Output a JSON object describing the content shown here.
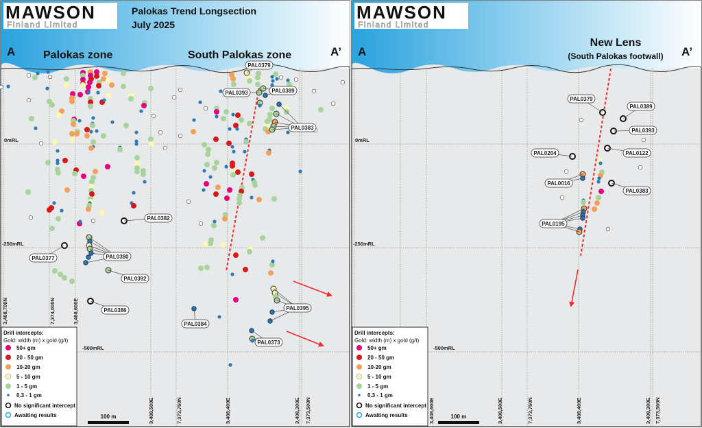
{
  "logo": {
    "brand": "MAWSON",
    "subtitle": "Finland Limited"
  },
  "panels": [
    {
      "title_line1": "Palokas Trend Longsection",
      "title_line2": "July 2025",
      "section_start": "A",
      "section_end": "A’",
      "zone_labels": [
        "Palokas zone",
        "South Palokas zone"
      ],
      "rl_labels": [
        "0mRL",
        "-250mRL",
        "-500mRL"
      ],
      "coord_labels": [
        "3,408,700N",
        "7,374,000N",
        "3,408,600E",
        "3,408,500E",
        "7,373,750N",
        "3,408,400E",
        "3,408,300E",
        "7,373,500N"
      ],
      "hole_labels": [
        "PAL0379",
        "PAL0393",
        "PAL0389",
        "PAL0383",
        "PAL0382",
        "PAL0377",
        "PAL0380",
        "PAL0392",
        "PAL0386",
        "PAL0395",
        "PAL0384",
        "PAL0373"
      ],
      "scale_label": "100 m"
    },
    {
      "section_start": "A",
      "section_end": "A’",
      "zone_label_line1": "New Lens",
      "zone_label_line2": "(South Palokas footwall)",
      "rl_labels": [
        "0mRL",
        "-250mRL",
        "-500mRL"
      ],
      "coord_labels": [
        "3,408,600E",
        "3,408,500E",
        "7,373,750N",
        "3,408,400E",
        "3,408,300E",
        "7,373,500N"
      ],
      "hole_labels": [
        "PAL0379",
        "PAL0389",
        "PAL0393",
        "PAL0122",
        "PAL0204",
        "PAL0016",
        "PAL0383",
        "PAL0195"
      ],
      "scale_label": "100 m"
    }
  ],
  "legend": {
    "title": "Drill intercepts:",
    "subtitle": "Gold: width (m) x gold (g/t)",
    "items": [
      {
        "label": "50+ gm",
        "color": "#e5007d"
      },
      {
        "label": "20 - 50 gm",
        "color": "#d7191c"
      },
      {
        "label": "10-20 gm",
        "color": "#f5a05a"
      },
      {
        "label": "5 - 10 gm",
        "color": "#fdf7b6"
      },
      {
        "label": "1 - 5 gm",
        "color": "#a8d49c"
      },
      {
        "label": "0.3 - 1 gm",
        "color": "#2a7ab8"
      },
      {
        "label": "No significant intercept",
        "color": "#111111"
      },
      {
        "label": "Awaiting results",
        "color": "#29abe2"
      }
    ]
  },
  "colors": {
    "header_start": "#29a3df",
    "header_end": "#ffffff",
    "section_bg": "#e8e9eb",
    "interpreted_lens": "#ee2a2a",
    "arrows": "#ee2a2a"
  }
}
